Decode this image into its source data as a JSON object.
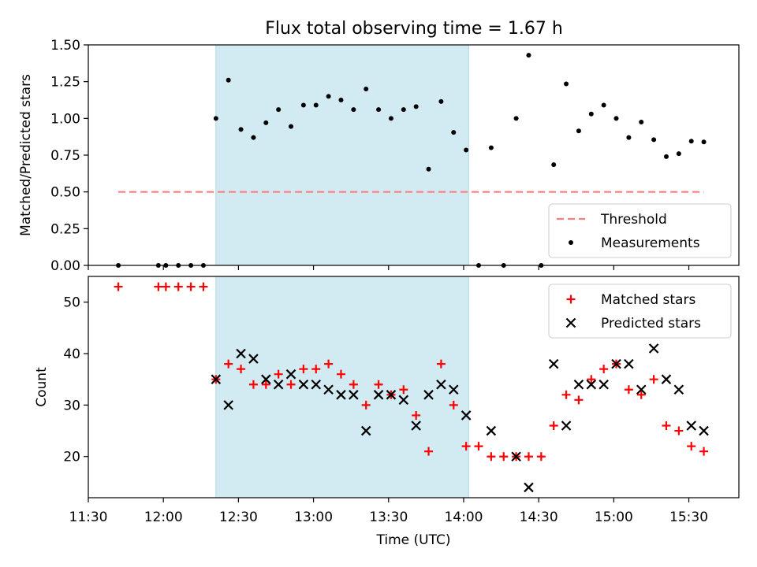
{
  "figure": {
    "title": "Flux total observing time = 1.67 h"
  },
  "chart_data": [
    {
      "type": "scatter",
      "title": "Flux total observing time = 1.67 h",
      "xlabel": "",
      "ylabel": "Matched/Predicted stars",
      "xlim": [
        "11:30",
        "15:50"
      ],
      "ylim": [
        0.0,
        1.5
      ],
      "yticks": [
        "0.00",
        "0.25",
        "0.50",
        "0.75",
        "1.00",
        "1.25",
        "1.50"
      ],
      "shaded_interval": [
        "12:21",
        "14:02"
      ],
      "legend_position": "lower right",
      "series": [
        {
          "name": "Threshold",
          "style": "dashed-line",
          "color": "#ff7f7f",
          "x": [
            "11:42",
            "15:36"
          ],
          "y": [
            0.5,
            0.5
          ]
        },
        {
          "name": "Measurements",
          "style": "dot",
          "color": "#000000",
          "x": [
            "11:42",
            "11:58",
            "12:01",
            "12:06",
            "12:11",
            "12:16",
            "12:21",
            "12:26",
            "12:31",
            "12:36",
            "12:41",
            "12:46",
            "12:51",
            "12:56",
            "13:01",
            "13:06",
            "13:11",
            "13:16",
            "13:21",
            "13:26",
            "13:31",
            "13:36",
            "13:41",
            "13:46",
            "13:51",
            "13:56",
            "14:01",
            "14:06",
            "14:11",
            "14:16",
            "14:21",
            "14:26",
            "14:31",
            "14:36",
            "14:41",
            "14:46",
            "14:51",
            "14:56",
            "15:01",
            "15:06",
            "15:11",
            "15:16",
            "15:21",
            "15:26",
            "15:31",
            "15:36"
          ],
          "y": [
            0.0,
            0.0,
            0.0,
            0.0,
            0.0,
            0.0,
            1.0,
            1.26,
            0.925,
            0.87,
            0.97,
            1.06,
            0.945,
            1.09,
            1.09,
            1.15,
            1.125,
            1.06,
            1.2,
            1.06,
            1.0,
            1.06,
            1.08,
            0.655,
            1.115,
            0.905,
            0.785,
            0.0,
            0.8,
            0.0,
            1.0,
            1.43,
            0.0,
            0.685,
            1.235,
            0.915,
            1.03,
            1.09,
            1.0,
            0.87,
            0.975,
            0.855,
            0.74,
            0.76,
            0.845,
            0.84
          ]
        }
      ]
    },
    {
      "type": "scatter",
      "title": "",
      "xlabel": "Time (UTC)",
      "ylabel": "Count",
      "xlim": [
        "11:30",
        "15:50"
      ],
      "ylim": [
        12,
        55
      ],
      "yticks": [
        "20",
        "30",
        "40",
        "50"
      ],
      "xticks": [
        "11:30",
        "12:00",
        "12:30",
        "13:00",
        "13:30",
        "14:00",
        "14:30",
        "15:00",
        "15:30"
      ],
      "shaded_interval": [
        "12:21",
        "14:02"
      ],
      "legend_position": "upper right",
      "series": [
        {
          "name": "Matched stars",
          "style": "plus",
          "color": "#ff0000",
          "x": [
            "11:42",
            "11:58",
            "12:01",
            "12:06",
            "12:11",
            "12:16",
            "12:21",
            "12:26",
            "12:31",
            "12:36",
            "12:41",
            "12:46",
            "12:51",
            "12:56",
            "13:01",
            "13:06",
            "13:11",
            "13:16",
            "13:21",
            "13:26",
            "13:31",
            "13:36",
            "13:41",
            "13:46",
            "13:51",
            "13:56",
            "14:01",
            "14:06",
            "14:11",
            "14:16",
            "14:21",
            "14:26",
            "14:31",
            "14:36",
            "14:41",
            "14:46",
            "14:51",
            "14:56",
            "15:01",
            "15:06",
            "15:11",
            "15:16",
            "15:21",
            "15:26",
            "15:31",
            "15:36"
          ],
          "y": [
            53,
            53,
            53,
            53,
            53,
            53,
            35,
            38,
            37,
            34,
            34,
            36,
            34,
            37,
            37,
            38,
            36,
            34,
            30,
            34,
            32,
            33,
            28,
            21,
            38,
            30,
            22,
            22,
            20,
            20,
            20,
            20,
            20,
            26,
            32,
            31,
            35,
            37,
            38,
            33,
            32,
            35,
            26,
            25,
            22,
            21
          ]
        },
        {
          "name": "Predicted stars",
          "style": "x",
          "color": "#000000",
          "x": [
            "12:21",
            "12:26",
            "12:31",
            "12:36",
            "12:41",
            "12:46",
            "12:51",
            "12:56",
            "13:01",
            "13:06",
            "13:11",
            "13:16",
            "13:21",
            "13:26",
            "13:31",
            "13:36",
            "13:41",
            "13:46",
            "13:51",
            "13:56",
            "14:01",
            "14:11",
            "14:21",
            "14:26",
            "14:36",
            "14:41",
            "14:46",
            "14:51",
            "14:56",
            "15:01",
            "15:06",
            "15:11",
            "15:16",
            "15:21",
            "15:26",
            "15:31",
            "15:36"
          ],
          "y": [
            35,
            30,
            40,
            39,
            35,
            34,
            36,
            34,
            34,
            33,
            32,
            32,
            25,
            32,
            32,
            31,
            26,
            32,
            34,
            33,
            28,
            25,
            20,
            14,
            38,
            26,
            34,
            34,
            34,
            38,
            38,
            33,
            41,
            35,
            33,
            26,
            25
          ]
        }
      ]
    }
  ]
}
